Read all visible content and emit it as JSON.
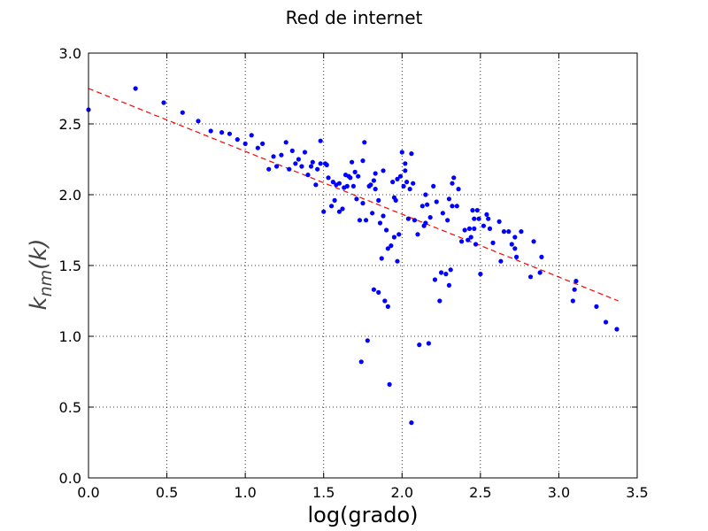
{
  "chart_data": {
    "type": "scatter",
    "title": "Red de internet",
    "xlabel": "log(grado)",
    "ylabel": {
      "base": "k",
      "sub": "nm",
      "arg": "(k)"
    },
    "xlim": [
      0.0,
      3.5
    ],
    "ylim": [
      0.0,
      3.0
    ],
    "xticks": [
      "0.0",
      "0.5",
      "1.0",
      "1.5",
      "2.0",
      "2.5",
      "3.0",
      "3.5"
    ],
    "yticks": [
      "0.0",
      "0.5",
      "1.0",
      "1.5",
      "2.0",
      "2.5",
      "3.0"
    ],
    "grid": true,
    "point_color": "#0000ff",
    "fit_color": "#ff0000",
    "fit_line": {
      "x": [
        0.0,
        3.38
      ],
      "y": [
        2.75,
        1.25
      ]
    },
    "points": [
      [
        0.0,
        2.6
      ],
      [
        0.3,
        2.75
      ],
      [
        0.48,
        2.65
      ],
      [
        0.6,
        2.58
      ],
      [
        0.7,
        2.52
      ],
      [
        0.78,
        2.45
      ],
      [
        0.85,
        2.44
      ],
      [
        0.9,
        2.43
      ],
      [
        0.95,
        2.39
      ],
      [
        1.0,
        2.36
      ],
      [
        1.04,
        2.42
      ],
      [
        1.08,
        2.33
      ],
      [
        1.11,
        2.36
      ],
      [
        1.15,
        2.18
      ],
      [
        1.18,
        2.27
      ],
      [
        1.2,
        2.2
      ],
      [
        1.23,
        2.28
      ],
      [
        1.26,
        2.37
      ],
      [
        1.28,
        2.18
      ],
      [
        1.3,
        2.31
      ],
      [
        1.32,
        2.22
      ],
      [
        1.34,
        2.25
      ],
      [
        1.36,
        2.2
      ],
      [
        1.38,
        2.3
      ],
      [
        1.4,
        2.14
      ],
      [
        1.42,
        2.2
      ],
      [
        1.43,
        2.23
      ],
      [
        1.45,
        2.07
      ],
      [
        1.46,
        2.18
      ],
      [
        1.48,
        2.22
      ],
      [
        1.48,
        2.38
      ],
      [
        1.5,
        1.88
      ],
      [
        1.51,
        2.22
      ],
      [
        1.52,
        2.21
      ],
      [
        1.53,
        2.12
      ],
      [
        1.55,
        1.92
      ],
      [
        1.56,
        2.09
      ],
      [
        1.57,
        1.96
      ],
      [
        1.58,
        2.07
      ],
      [
        1.6,
        1.88
      ],
      [
        1.6,
        2.08
      ],
      [
        1.62,
        1.9
      ],
      [
        1.63,
        2.05
      ],
      [
        1.64,
        2.14
      ],
      [
        1.65,
        2.06
      ],
      [
        1.66,
        2.13
      ],
      [
        1.67,
        2.12
      ],
      [
        1.68,
        2.23
      ],
      [
        1.69,
        2.06
      ],
      [
        1.7,
        2.16
      ],
      [
        1.71,
        1.97
      ],
      [
        1.72,
        2.13
      ],
      [
        1.73,
        1.82
      ],
      [
        1.74,
        0.82
      ],
      [
        1.75,
        1.94
      ],
      [
        1.75,
        2.24
      ],
      [
        1.76,
        2.37
      ],
      [
        1.77,
        1.82
      ],
      [
        1.78,
        0.97
      ],
      [
        1.79,
        2.06
      ],
      [
        1.8,
        2.07
      ],
      [
        1.81,
        1.87
      ],
      [
        1.82,
        1.33
      ],
      [
        1.82,
        2.1
      ],
      [
        1.83,
        2.04
      ],
      [
        1.83,
        2.15
      ],
      [
        1.85,
        1.31
      ],
      [
        1.85,
        1.96
      ],
      [
        1.86,
        1.8
      ],
      [
        1.87,
        1.55
      ],
      [
        1.88,
        2.17
      ],
      [
        1.88,
        1.85
      ],
      [
        1.89,
        1.25
      ],
      [
        1.9,
        1.75
      ],
      [
        1.91,
        1.21
      ],
      [
        1.91,
        1.62
      ],
      [
        1.92,
        0.66
      ],
      [
        1.93,
        1.64
      ],
      [
        1.94,
        2.09
      ],
      [
        1.95,
        1.7
      ],
      [
        1.95,
        1.98
      ],
      [
        1.96,
        1.96
      ],
      [
        1.97,
        2.11
      ],
      [
        1.97,
        1.53
      ],
      [
        1.98,
        1.72
      ],
      [
        1.99,
        2.13
      ],
      [
        2.0,
        2.3
      ],
      [
        2.01,
        2.06
      ],
      [
        2.02,
        2.17
      ],
      [
        2.02,
        2.22
      ],
      [
        2.03,
        2.09
      ],
      [
        2.04,
        1.83
      ],
      [
        2.05,
        2.04
      ],
      [
        2.06,
        2.29
      ],
      [
        2.06,
        0.39
      ],
      [
        2.07,
        2.08
      ],
      [
        2.08,
        1.82
      ],
      [
        2.1,
        1.72
      ],
      [
        2.11,
        0.94
      ],
      [
        2.13,
        1.92
      ],
      [
        2.14,
        1.78
      ],
      [
        2.15,
        1.8
      ],
      [
        2.15,
        2.0
      ],
      [
        2.16,
        1.93
      ],
      [
        2.17,
        0.95
      ],
      [
        2.18,
        1.84
      ],
      [
        2.2,
        2.06
      ],
      [
        2.21,
        1.4
      ],
      [
        2.22,
        1.95
      ],
      [
        2.24,
        1.25
      ],
      [
        2.25,
        1.45
      ],
      [
        2.26,
        1.87
      ],
      [
        2.28,
        1.44
      ],
      [
        2.29,
        1.82
      ],
      [
        2.3,
        1.36
      ],
      [
        2.3,
        1.97
      ],
      [
        2.31,
        1.47
      ],
      [
        2.32,
        1.92
      ],
      [
        2.32,
        2.08
      ],
      [
        2.33,
        2.12
      ],
      [
        2.35,
        1.92
      ],
      [
        2.36,
        2.04
      ],
      [
        2.38,
        1.67
      ],
      [
        2.4,
        1.75
      ],
      [
        2.42,
        1.68
      ],
      [
        2.43,
        1.76
      ],
      [
        2.44,
        1.7
      ],
      [
        2.45,
        1.89
      ],
      [
        2.46,
        1.76
      ],
      [
        2.46,
        1.83
      ],
      [
        2.47,
        1.65
      ],
      [
        2.48,
        1.89
      ],
      [
        2.49,
        1.83
      ],
      [
        2.5,
        1.44
      ],
      [
        2.52,
        1.78
      ],
      [
        2.54,
        1.86
      ],
      [
        2.55,
        1.83
      ],
      [
        2.56,
        1.76
      ],
      [
        2.58,
        1.66
      ],
      [
        2.62,
        1.81
      ],
      [
        2.63,
        1.53
      ],
      [
        2.65,
        1.74
      ],
      [
        2.68,
        1.74
      ],
      [
        2.7,
        1.65
      ],
      [
        2.72,
        1.62
      ],
      [
        2.72,
        1.7
      ],
      [
        2.73,
        1.56
      ],
      [
        2.76,
        1.74
      ],
      [
        2.82,
        1.42
      ],
      [
        2.84,
        1.67
      ],
      [
        2.88,
        1.45
      ],
      [
        2.89,
        1.56
      ],
      [
        3.09,
        1.25
      ],
      [
        3.1,
        1.33
      ],
      [
        3.11,
        1.39
      ],
      [
        3.24,
        1.21
      ],
      [
        3.3,
        1.1
      ],
      [
        3.37,
        1.05
      ]
    ]
  }
}
